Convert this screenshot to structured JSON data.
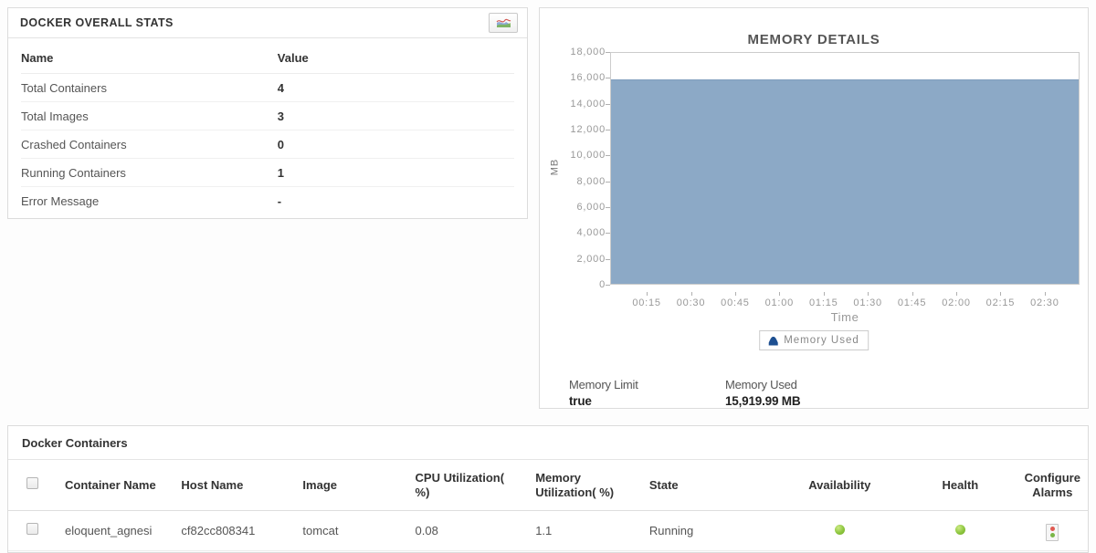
{
  "stats_panel": {
    "title": "DOCKER OVERALL STATS",
    "columns": [
      "Name",
      "Value"
    ],
    "rows": [
      {
        "name": "Total Containers",
        "value": "4"
      },
      {
        "name": "Total Images",
        "value": "3"
      },
      {
        "name": "Crashed Containers",
        "value": "0"
      },
      {
        "name": "Running Containers",
        "value": "1"
      },
      {
        "name": "Error Message",
        "value": "-"
      }
    ]
  },
  "memory_panel": {
    "legend_label": "Memory Used",
    "footer": [
      {
        "label": "Memory Limit",
        "value": "true"
      },
      {
        "label": "Memory Used",
        "value": "15,919.99 MB"
      }
    ]
  },
  "chart_data": {
    "type": "area",
    "title": "MEMORY DETAILS",
    "xlabel": "Time",
    "ylabel": "MB",
    "ylim": [
      0,
      18000
    ],
    "yticks": [
      0,
      2000,
      4000,
      6000,
      8000,
      10000,
      12000,
      14000,
      16000,
      18000
    ],
    "x": [
      "00:15",
      "00:30",
      "00:45",
      "01:00",
      "01:15",
      "01:30",
      "01:45",
      "02:00",
      "02:15",
      "02:30"
    ],
    "series": [
      {
        "name": "Memory Used",
        "values": [
          15919.99,
          15919.99,
          15919.99,
          15919.99,
          15919.99,
          15919.99,
          15919.99,
          15919.99,
          15919.99,
          15919.99
        ],
        "color": "#8CA9C6"
      }
    ],
    "grid": false,
    "legend_position": "bottom"
  },
  "containers_panel": {
    "title": "Docker Containers",
    "columns": [
      "Container Name",
      "Host Name",
      "Image",
      "CPU Utilization( %)",
      "Memory Utilization( %)",
      "State",
      "Availability",
      "Health",
      "Configure Alarms"
    ],
    "rows": [
      {
        "container_name": "eloquent_agnesi",
        "host_name": "cf82cc808341",
        "image": "tomcat",
        "cpu": "0.08",
        "memory": "1.1",
        "state": "Running",
        "availability": "up",
        "health": "up"
      }
    ]
  },
  "colors": {
    "area_fill": "#8CA9C6",
    "legend_icon": "#1d4f91",
    "status_up": "#8dc63f",
    "alarm_red": "#e05a52",
    "alarm_green": "#7ab648"
  }
}
